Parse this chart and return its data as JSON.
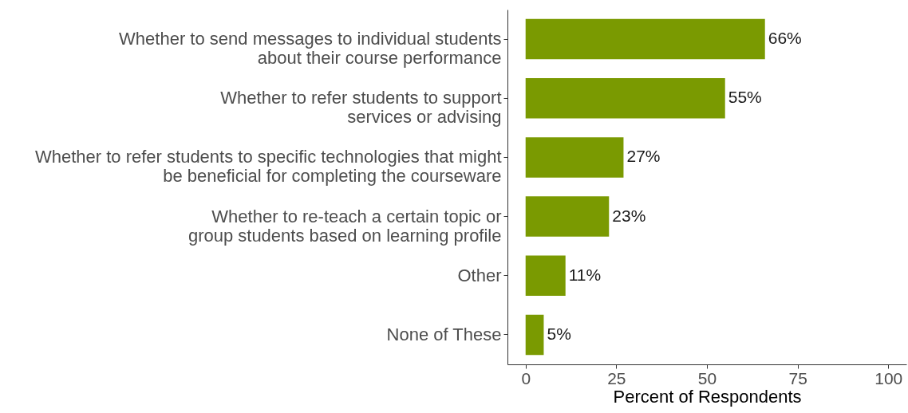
{
  "chart_data": {
    "type": "bar",
    "orientation": "horizontal",
    "xlabel": "Percent of Respondents",
    "categories": [
      "Whether to send messages to individual students\nabout their course performance",
      "Whether to refer students to support\nservices or advising",
      "Whether to refer students to specific technologies that might\nbe beneficial for completing the courseware",
      "Whether to re-teach a certain topic or\ngroup students based on learning profile",
      "Other",
      "None of These"
    ],
    "values": [
      66,
      55,
      27,
      23,
      11,
      5
    ],
    "value_labels": [
      "66%",
      "55%",
      "27%",
      "23%",
      "11%",
      "5%"
    ],
    "color": "#7a9a01",
    "xlim": [
      -5,
      105
    ],
    "xticks": [
      0,
      25,
      50,
      75,
      100
    ],
    "grid": false
  }
}
